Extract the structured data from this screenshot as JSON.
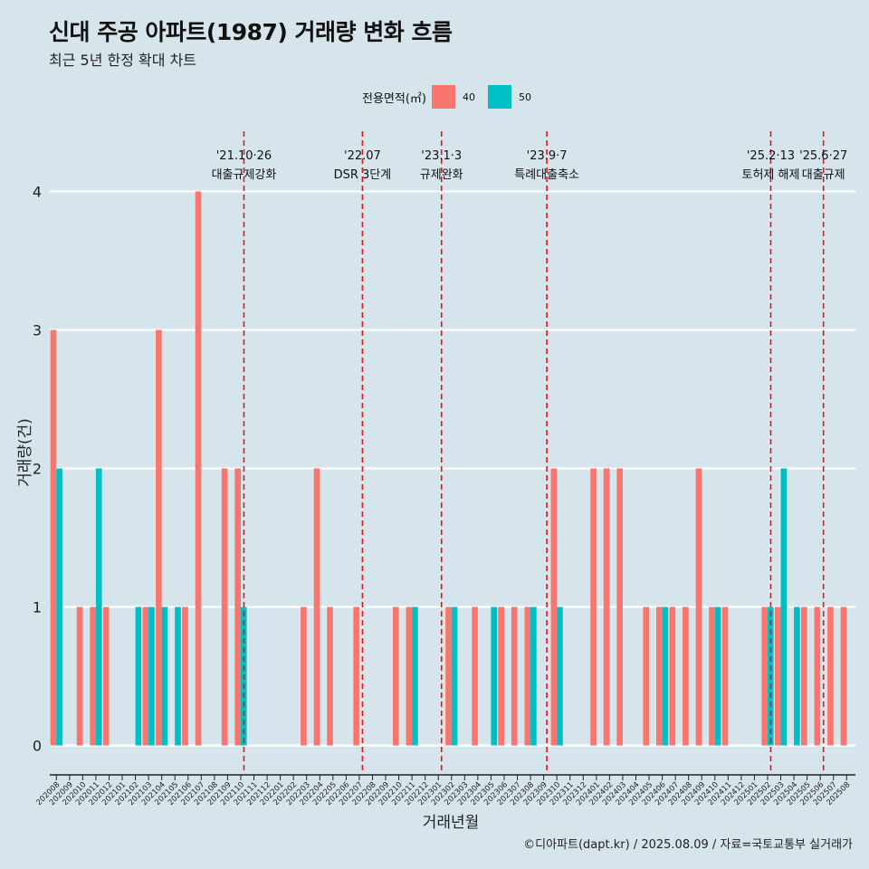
{
  "title": "신대 주공 아파트(1987) 거래량 변화 흐름",
  "subtitle": "최근 5년 한정 확대 차트",
  "legend": {
    "title": "전용면적(㎡)",
    "items": [
      {
        "label": "40",
        "color": "#f8766d"
      },
      {
        "label": "50",
        "color": "#00bfc4"
      }
    ]
  },
  "caption": "©디아파트(dapt.kr) / 2025.08.09 / 자료=국토교통부 실거래가",
  "chart_data": {
    "type": "bar",
    "title": "신대 주공 아파트(1987) 거래량 변화 흐름",
    "subtitle": "최근 5년 한정 확대 차트",
    "xlabel": "거래년월",
    "ylabel": "거래량(건)",
    "ylim": [
      0,
      4
    ],
    "yticks": [
      0,
      1,
      2,
      3,
      4
    ],
    "grid": true,
    "legend_placement": "top",
    "categories": [
      "202008",
      "202009",
      "202010",
      "202011",
      "202012",
      "202101",
      "202102",
      "202103",
      "202104",
      "202105",
      "202106",
      "202107",
      "202108",
      "202109",
      "202110",
      "202111",
      "202112",
      "202201",
      "202202",
      "202203",
      "202204",
      "202205",
      "202206",
      "202207",
      "202208",
      "202209",
      "202210",
      "202211",
      "202212",
      "202301",
      "202302",
      "202303",
      "202304",
      "202305",
      "202306",
      "202307",
      "202308",
      "202309",
      "202310",
      "202311",
      "202312",
      "202401",
      "202402",
      "202403",
      "202404",
      "202405",
      "202406",
      "202407",
      "202408",
      "202409",
      "202410",
      "202411",
      "202412",
      "202501",
      "202502",
      "202503",
      "202504",
      "202505",
      "202506",
      "202507",
      "202508"
    ],
    "series": [
      {
        "name": "40",
        "color": "#f8766d",
        "values": [
          3,
          0,
          1,
          1,
          1,
          0,
          0,
          1,
          3,
          0,
          1,
          4,
          0,
          2,
          2,
          0,
          0,
          0,
          0,
          1,
          2,
          1,
          0,
          1,
          0,
          0,
          1,
          1,
          0,
          0,
          1,
          0,
          1,
          0,
          1,
          1,
          1,
          0,
          2,
          0,
          0,
          2,
          2,
          2,
          0,
          1,
          1,
          1,
          1,
          2,
          1,
          1,
          0,
          0,
          1,
          1,
          0,
          1,
          1,
          1,
          1
        ]
      },
      {
        "name": "50",
        "color": "#00bfc4",
        "values": [
          2,
          0,
          0,
          2,
          0,
          0,
          1,
          1,
          1,
          1,
          0,
          0,
          0,
          0,
          1,
          0,
          0,
          0,
          0,
          0,
          0,
          0,
          0,
          0,
          0,
          0,
          0,
          1,
          0,
          0,
          1,
          0,
          0,
          1,
          0,
          0,
          1,
          0,
          1,
          0,
          0,
          0,
          0,
          0,
          0,
          0,
          1,
          0,
          0,
          0,
          1,
          0,
          0,
          0,
          1,
          2,
          1,
          0,
          0,
          0,
          0
        ]
      }
    ],
    "annotations": [
      {
        "date": "202110",
        "line1": "'21.10·26",
        "line2": "대출규제강화"
      },
      {
        "date": "202207",
        "line1": "'22.07",
        "line2": "DSR 3단계"
      },
      {
        "date": "202301",
        "line1": "'23.1·3",
        "line2": "규제완화"
      },
      {
        "date": "202309",
        "line1": "'23.9·7",
        "line2": "특례대출축소"
      },
      {
        "date": "202502",
        "line1": "'25.2·13",
        "line2": "토허제 해제"
      },
      {
        "date": "202506",
        "line1": "'25.6·27",
        "line2": "대출규제"
      }
    ]
  }
}
